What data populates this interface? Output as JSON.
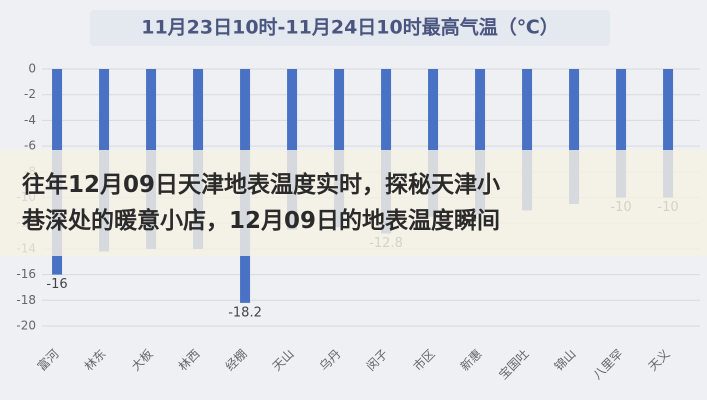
{
  "chart_data": {
    "type": "bar",
    "title": "11月23日10时-11月24日10时最高气温（℃）",
    "categories": [
      "富河",
      "林东",
      "大板",
      "林西",
      "经棚",
      "天山",
      "乌丹",
      "闵子",
      "市区",
      "新惠",
      "宝国吐",
      "锦山",
      "八里罕",
      "天义"
    ],
    "values": [
      -16,
      -14.2,
      -14,
      -14,
      -18.2,
      -12.5,
      -12.3,
      -12.8,
      -11.5,
      -11.3,
      -11,
      -10.5,
      -10,
      -10
    ],
    "value_labels": [
      "-16",
      null,
      null,
      null,
      "-18.2",
      null,
      null,
      "-12.8",
      null,
      null,
      null,
      null,
      "-10",
      "-10"
    ],
    "color": "#4a72c4",
    "ylim": [
      -20,
      0
    ],
    "yticks": [
      0,
      -2,
      -4,
      -6,
      -8,
      -10,
      -12,
      -14,
      -16,
      -18,
      -20
    ],
    "grid": true
  },
  "banner": {
    "lines": [
      "往年12月09日天津地表温度实时，探秘天津小",
      "巷深处的暖意小店，12月09日的地表温度瞬间"
    ]
  }
}
